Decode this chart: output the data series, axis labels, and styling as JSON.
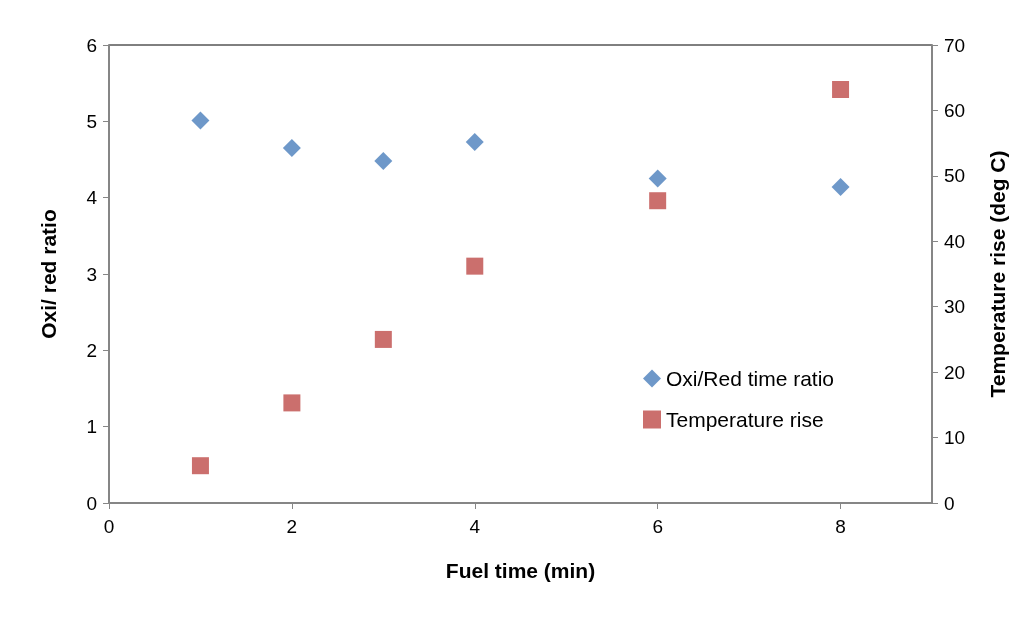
{
  "chart_data": {
    "type": "scatter",
    "xlabel": "Fuel time (min)",
    "ylabel": "Oxi/ red ratio",
    "y2label": "Temperature rise (deg C)",
    "xlim": [
      0,
      9
    ],
    "xticks": [
      0,
      2,
      4,
      6,
      8
    ],
    "ylim": [
      0,
      6
    ],
    "yticks": [
      0,
      1,
      2,
      3,
      4,
      5,
      6
    ],
    "y2lim": [
      0,
      70
    ],
    "y2ticks": [
      0,
      10,
      20,
      30,
      40,
      50,
      60,
      70
    ],
    "grid": false,
    "legend": "right",
    "series": [
      {
        "name": "Oxi/Red time ratio",
        "color": "#4a7ebb",
        "marker": "diamond",
        "x": [
          1,
          2,
          3,
          4,
          6,
          8
        ],
        "values": [
          5.01,
          4.65,
          4.48,
          4.73,
          4.25,
          4.14
        ]
      },
      {
        "name": "Temperature rise",
        "color": "#be4b48",
        "marker": "square",
        "axis": "y2",
        "x": [
          1,
          2,
          3,
          4,
          6,
          8
        ],
        "values": [
          5.7,
          15.3,
          25.0,
          36.2,
          46.2,
          63.2
        ]
      }
    ]
  }
}
